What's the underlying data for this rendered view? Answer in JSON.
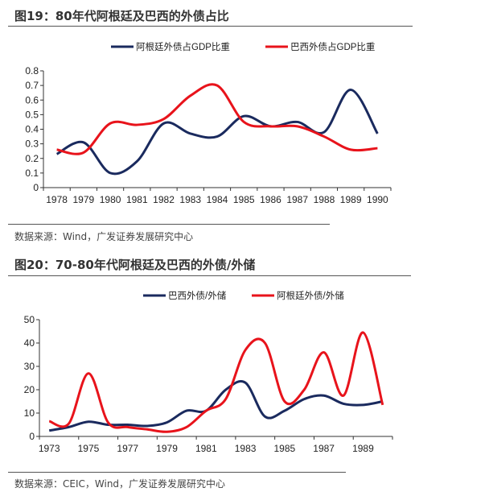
{
  "figures": [
    {
      "title": "图19：80年代阿根廷及巴西的外债占比",
      "source": "数据来源：Wind，广发证券发展研究中心"
    },
    {
      "title": "图20：70-80年代阿根廷及巴西的外债/外储",
      "source": "数据来源：CEIC，Wind，广发证券发展研究中心"
    }
  ],
  "chart_data": [
    {
      "type": "line",
      "categories": [
        "1978",
        "1979",
        "1980",
        "1981",
        "1982",
        "1983",
        "1984",
        "1985",
        "1986",
        "1987",
        "1988",
        "1989",
        "1990"
      ],
      "tick_labels": [
        "1978",
        "1979",
        "1980",
        "1981",
        "1982",
        "1983",
        "1984",
        "1985",
        "1986",
        "1987",
        "1988",
        "1989",
        "1990"
      ],
      "ylim": [
        0,
        0.8
      ],
      "yticks": [
        "0",
        "0.1",
        "0.2",
        "0.3",
        "0.4",
        "0.5",
        "0.6",
        "0.7",
        "0.8"
      ],
      "legend": "top",
      "grid": false,
      "series": [
        {
          "name": "阿根廷外债占GDP比重",
          "color": "#1a2a5e",
          "values": [
            0.23,
            0.31,
            0.1,
            0.18,
            0.44,
            0.37,
            0.35,
            0.49,
            0.42,
            0.45,
            0.38,
            0.67,
            0.37
          ]
        },
        {
          "name": "巴西外债占GDP比重",
          "color": "#e8131b",
          "values": [
            0.26,
            0.24,
            0.44,
            0.43,
            0.47,
            0.63,
            0.7,
            0.45,
            0.42,
            0.42,
            0.35,
            0.26,
            0.27
          ]
        }
      ]
    },
    {
      "type": "line",
      "categories": [
        "1973",
        "1974",
        "1975",
        "1976",
        "1977",
        "1978",
        "1979",
        "1980",
        "1981",
        "1982",
        "1983",
        "1984",
        "1985",
        "1986",
        "1987",
        "1988",
        "1989",
        "1990"
      ],
      "tick_labels": [
        "1973",
        "1975",
        "1977",
        "1979",
        "1981",
        "1983",
        "1985",
        "1987",
        "1989"
      ],
      "ylim": [
        0,
        50
      ],
      "yticks": [
        "0",
        "10",
        "20",
        "30",
        "40",
        "50"
      ],
      "legend": "top",
      "grid": false,
      "series": [
        {
          "name": "巴西外债/外储",
          "color": "#1a2a5e",
          "values": [
            2.5,
            4,
            6.3,
            5,
            5,
            4.5,
            6,
            11,
            11,
            20,
            23,
            8.5,
            11,
            16,
            17.5,
            14,
            13.5,
            15
          ]
        },
        {
          "name": "阿根廷外债/外储",
          "color": "#e8131b",
          "values": [
            6.5,
            5.5,
            27,
            6,
            4,
            3,
            2,
            4,
            11,
            16,
            37,
            40,
            15,
            20,
            36,
            17.5,
            44.5,
            13.5
          ]
        }
      ]
    }
  ]
}
